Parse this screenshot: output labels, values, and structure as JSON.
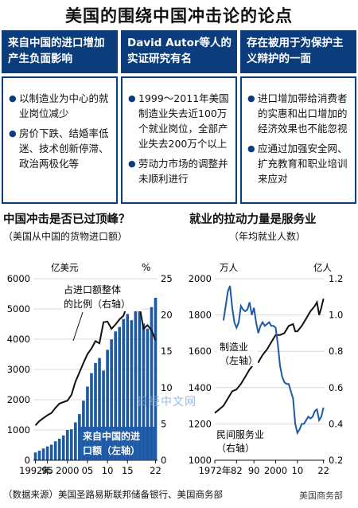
{
  "title": "美国的围绕中国冲击论的论点",
  "columns": [
    {
      "heading": "来自中国的进口增加产生负面影响",
      "bullets": [
        "以制造业为中心的就业岗位减少",
        "房价下跌、结婚率低迷、技术创新停滞、政治两极化等"
      ]
    },
    {
      "heading": "David Autor等人的实证研究有名",
      "bullets": [
        "1999～2011年美国制造业失去近100万个就业岗位，全部产业失去200万个以上",
        "劳动力市场的调整并未顺利进行"
      ]
    },
    {
      "heading": "存在被用于为保护主义辩护的一面",
      "bullets": [
        "进口增加带给消费者的实惠和出口增加的经济效果也不能忽视",
        "应通过加强安全网、扩充教育和职业培训来应对"
      ]
    }
  ],
  "footer": "（数据来源）美国圣路易斯联邦储备银行、美国商务部",
  "watermark": "日经中文网",
  "corner_mark": "美国商务部",
  "chart_data": [
    {
      "type": "bar",
      "title": "中国冲击是否已过顶峰？",
      "subtitle": "（美国从中国的货物进口额）",
      "left_unit": "亿美元",
      "right_unit": "%",
      "x_tick_labels": [
        "1992年",
        "95",
        "2000",
        "05",
        "10",
        "15",
        "22"
      ],
      "x_ticks": [
        1992,
        1995,
        2000,
        2005,
        2010,
        2015,
        2022
      ],
      "xlim": [
        1991.5,
        2022.5
      ],
      "y_left_ticks": [
        0,
        1000,
        2000,
        3000,
        4000,
        5000,
        6000
      ],
      "y_left_lim": [
        0,
        6000
      ],
      "y_right_ticks": [
        0,
        5,
        10,
        15,
        20,
        25
      ],
      "y_right_lim": [
        0,
        25
      ],
      "bar_color": "#1c5aa6",
      "line_color": "#111111",
      "series": [
        {
          "name": "来自中国的进口额（左轴）",
          "axis": "left",
          "x": [
            1992,
            1993,
            1994,
            1995,
            1996,
            1997,
            1998,
            1999,
            2000,
            2001,
            2002,
            2003,
            2004,
            2005,
            2006,
            2007,
            2008,
            2009,
            2010,
            2011,
            2012,
            2013,
            2014,
            2015,
            2016,
            2017,
            2018,
            2019,
            2020,
            2021,
            2022
          ],
          "values": [
            257,
            315,
            387,
            455,
            515,
            625,
            711,
            818,
            1000,
            1023,
            1252,
            1524,
            1967,
            2435,
            2878,
            3215,
            3378,
            2964,
            3650,
            3993,
            4256,
            4404,
            4666,
            4834,
            4628,
            5055,
            5395,
            4520,
            4350,
            5060,
            5370
          ]
        },
        {
          "name": "占进口额整体的比例（右轴）",
          "axis": "right",
          "x": [
            1992,
            1993,
            1994,
            1995,
            1996,
            1997,
            1998,
            1999,
            2000,
            2001,
            2002,
            2003,
            2004,
            2005,
            2006,
            2007,
            2008,
            2009,
            2010,
            2011,
            2012,
            2013,
            2014,
            2015,
            2016,
            2017,
            2018,
            2019,
            2020,
            2021,
            2022
          ],
          "values": [
            4.8,
            5.4,
            5.8,
            6.2,
            6.5,
            7.2,
            7.8,
            8.0,
            8.2,
            9.0,
            10.8,
            12.1,
            13.4,
            14.6,
            15.4,
            16.4,
            16.1,
            19.0,
            19.1,
            18.1,
            18.7,
            19.4,
            19.9,
            21.5,
            21.1,
            21.6,
            21.2,
            18.1,
            18.6,
            17.9,
            16.5
          ]
        }
      ],
      "annotations": [
        "占进口额整体的比例（右轴）",
        "来自中国的进口额（左轴）"
      ]
    },
    {
      "type": "line",
      "title": "就业的拉动力量是服务业",
      "subtitle": "（年均就业人数）",
      "left_unit": "万人",
      "right_unit": "亿人",
      "x_tick_labels": [
        "1972年",
        "82",
        "90",
        "2000",
        "10",
        "22"
      ],
      "x_ticks": [
        1972,
        1982,
        1990,
        2000,
        2010,
        2022
      ],
      "xlim": [
        1972,
        2022.5
      ],
      "y_left_ticks": [
        1000,
        1200,
        1400,
        1600,
        1800,
        2000
      ],
      "y_left_lim": [
        1000,
        2000
      ],
      "y_right_ticks": [
        0.2,
        0.4,
        0.6,
        0.8,
        1.0,
        1.2
      ],
      "y_right_lim": [
        0.2,
        1.2
      ],
      "manufacturing_color": "#1c5aa6",
      "services_color": "#111111",
      "series": [
        {
          "name": "制造业（左轴）",
          "axis": "left",
          "x": [
            1976,
            1977,
            1978,
            1979,
            1980,
            1981,
            1982,
            1983,
            1984,
            1985,
            1986,
            1987,
            1988,
            1989,
            1990,
            1991,
            1992,
            1993,
            1994,
            1995,
            1996,
            1997,
            1998,
            1999,
            2000,
            2001,
            2002,
            2003,
            2004,
            2005,
            2006,
            2007,
            2008,
            2009,
            2010,
            2011,
            2012,
            2013,
            2014,
            2015,
            2016,
            2017,
            2018,
            2019,
            2020,
            2021,
            2022
          ],
          "values": [
            1770,
            1850,
            1930,
            1960,
            1840,
            1760,
            1730,
            1760,
            1850,
            1830,
            1820,
            1830,
            1870,
            1800,
            1840,
            1760,
            1700,
            1740,
            1760,
            1740,
            1750,
            1760,
            1740,
            1740,
            1730,
            1640,
            1520,
            1460,
            1430,
            1420,
            1420,
            1380,
            1340,
            1200,
            1150,
            1170,
            1200,
            1200,
            1220,
            1240,
            1230,
            1240,
            1270,
            1280,
            1220,
            1240,
            1290
          ]
        },
        {
          "name": "民间服务业（右轴）",
          "axis": "right",
          "x": [
            1972,
            1974,
            1976,
            1978,
            1980,
            1982,
            1984,
            1986,
            1988,
            1990,
            1992,
            1994,
            1996,
            1998,
            2000,
            2002,
            2004,
            2006,
            2008,
            2009,
            2010,
            2012,
            2014,
            2016,
            2018,
            2019,
            2020,
            2021,
            2022
          ],
          "values": [
            0.46,
            0.48,
            0.5,
            0.54,
            0.58,
            0.59,
            0.62,
            0.66,
            0.7,
            0.73,
            0.74,
            0.78,
            0.81,
            0.85,
            0.89,
            0.89,
            0.9,
            0.94,
            0.95,
            0.91,
            0.91,
            0.94,
            0.98,
            1.02,
            1.05,
            1.07,
            1.0,
            1.04,
            1.09
          ]
        }
      ],
      "annotations": [
        "制造业（左轴）",
        "民间服务业（右轴）"
      ]
    }
  ]
}
